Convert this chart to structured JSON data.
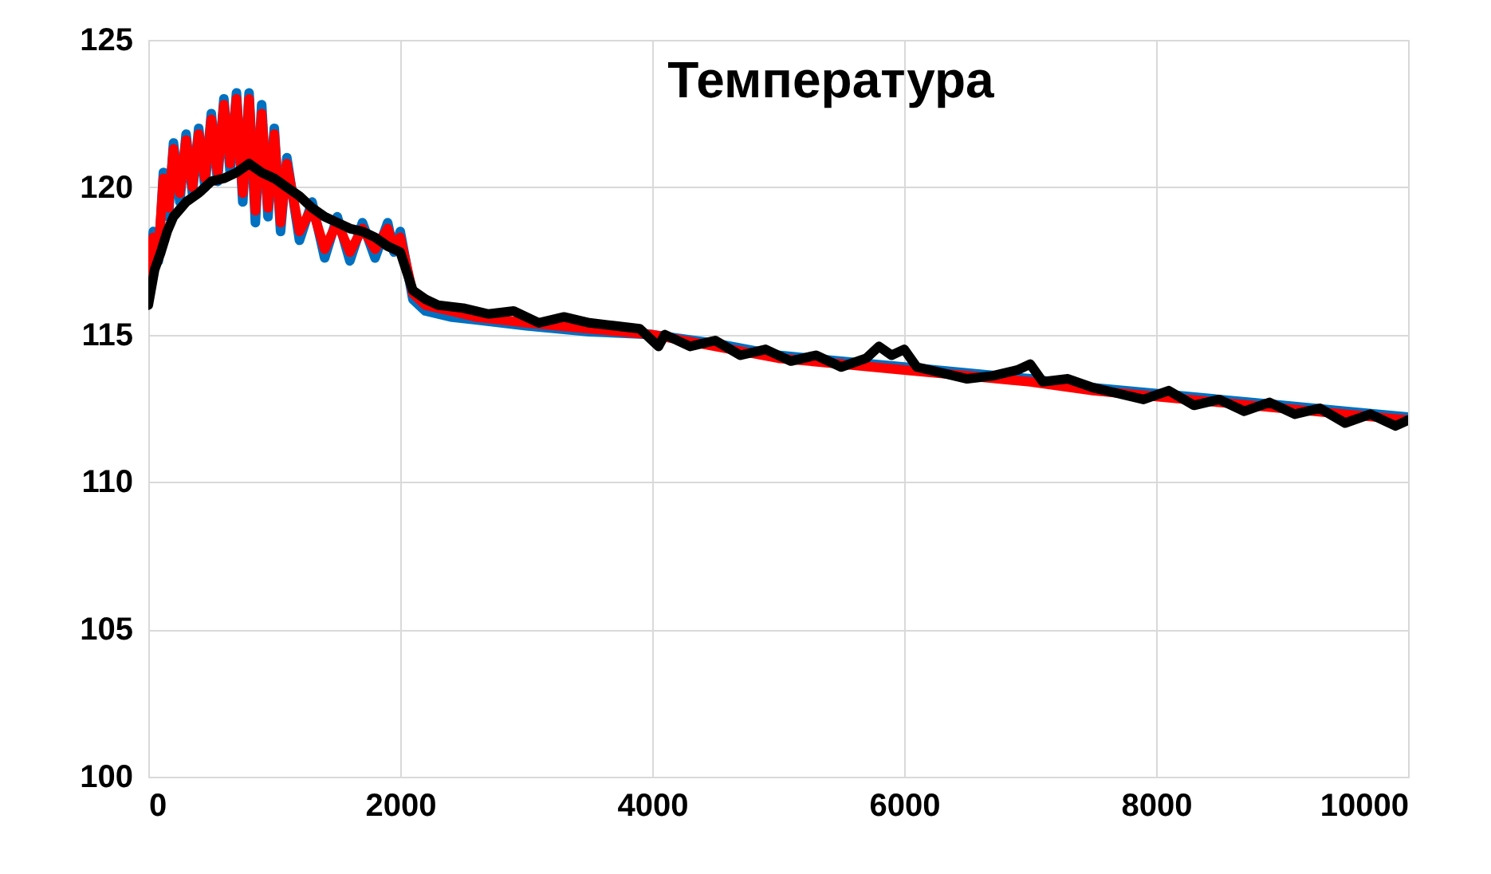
{
  "chart_data": {
    "type": "line",
    "title": "Температура",
    "x": [
      0,
      40,
      80,
      120,
      160,
      200,
      250,
      300,
      350,
      400,
      450,
      500,
      550,
      600,
      650,
      700,
      750,
      800,
      850,
      900,
      950,
      1000,
      1050,
      1100,
      1200,
      1300,
      1400,
      1500,
      1600,
      1700,
      1800,
      1900,
      1950,
      2000,
      2100,
      2200,
      2400,
      2600,
      2800,
      3000,
      3500,
      4000,
      4500,
      5000,
      5500,
      6000,
      6500,
      7000,
      7500,
      8000,
      8500,
      9000,
      9500,
      10000
    ],
    "series": [
      {
        "color": "#0070c0",
        "values": [
          116.5,
          118.5,
          117.5,
          120.5,
          119,
          121.5,
          119.5,
          121.8,
          119.8,
          122,
          120,
          122.5,
          120.2,
          123,
          120.5,
          123.2,
          119.5,
          123.2,
          118.8,
          122.8,
          119,
          122,
          118.5,
          121,
          118.2,
          119.5,
          117.6,
          119,
          117.5,
          118.8,
          117.6,
          118.8,
          117.8,
          118.5,
          116.2,
          115.8,
          115.6,
          115.5,
          115.4,
          115.3,
          115.1,
          115,
          114.7,
          114.3,
          114.1,
          113.9,
          113.7,
          113.5,
          113.2,
          113,
          112.8,
          112.6,
          112.4,
          112.2
        ]
      },
      {
        "color": "#ff0000",
        "values": [
          116.8,
          118.3,
          117.8,
          120.3,
          119.3,
          121.3,
          119.8,
          121.6,
          120,
          121.8,
          120.3,
          122.3,
          120.5,
          122.8,
          120.8,
          123,
          119.8,
          123,
          119.2,
          122.5,
          119.3,
          121.8,
          118.8,
          120.8,
          118.5,
          119.3,
          117.9,
          118.8,
          117.8,
          118.6,
          117.9,
          118.6,
          118,
          118.3,
          116.4,
          116,
          115.8,
          115.6,
          115.5,
          115.4,
          115.2,
          115.0,
          114.6,
          114.2,
          114.0,
          113.8,
          113.6,
          113.4,
          113.1,
          112.9,
          112.7,
          112.5,
          112.3,
          112.1
        ]
      },
      {
        "color": "#000000",
        "x": [
          0,
          50,
          100,
          150,
          200,
          300,
          400,
          500,
          600,
          700,
          800,
          900,
          1000,
          1100,
          1200,
          1300,
          1400,
          1500,
          1600,
          1700,
          1800,
          1900,
          2000,
          2100,
          2200,
          2300,
          2500,
          2700,
          2900,
          3100,
          3300,
          3500,
          3700,
          3900,
          4050,
          4100,
          4300,
          4500,
          4700,
          4900,
          5100,
          5300,
          5500,
          5700,
          5800,
          5900,
          6000,
          6100,
          6300,
          6500,
          6700,
          6900,
          7000,
          7100,
          7300,
          7500,
          7700,
          7900,
          8100,
          8300,
          8500,
          8700,
          8900,
          9100,
          9300,
          9500,
          9700,
          9900,
          10000
        ],
        "values": [
          116,
          117.2,
          117.8,
          118.5,
          119,
          119.5,
          119.8,
          120.2,
          120.3,
          120.5,
          120.8,
          120.5,
          120.3,
          120,
          119.7,
          119.3,
          119,
          118.8,
          118.6,
          118.5,
          118.3,
          118,
          117.8,
          116.5,
          116.2,
          116,
          115.9,
          115.7,
          115.8,
          115.4,
          115.6,
          115.4,
          115.3,
          115.2,
          114.6,
          115,
          114.6,
          114.8,
          114.3,
          114.5,
          114.1,
          114.3,
          113.9,
          114.2,
          114.6,
          114.3,
          114.5,
          113.9,
          113.7,
          113.5,
          113.6,
          113.8,
          114,
          113.4,
          113.5,
          113.2,
          113,
          112.8,
          113.1,
          112.6,
          112.8,
          112.4,
          112.7,
          112.3,
          112.5,
          112,
          112.3,
          111.9,
          112.1
        ]
      }
    ],
    "xlim": [
      0,
      10000
    ],
    "xticks": [
      0,
      2000,
      4000,
      6000,
      8000,
      10000
    ],
    "ylim": [
      100,
      125
    ],
    "yticks": [
      100,
      105,
      110,
      115,
      120,
      125
    ],
    "grid": true
  }
}
